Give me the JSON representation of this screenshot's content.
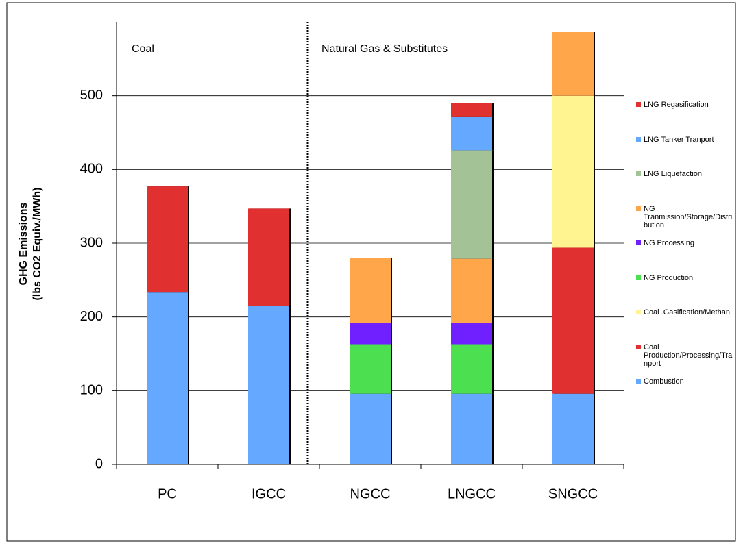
{
  "chart_data": {
    "type": "stacked_bar",
    "ylabel": [
      "GHG Emissions",
      "(lbs CO2 Equiv./MWh)"
    ],
    "annotations": [
      "Coal",
      "Natural Gas & Substitutes"
    ],
    "categories": [
      "PC",
      "IGCC",
      "NGCC",
      "LNGCC",
      "SNGCC"
    ],
    "series": [
      {
        "name": "Combustion",
        "color": "#64a8ff",
        "values": [
          233,
          215,
          96,
          96,
          96
        ]
      },
      {
        "name": "Coal Production/Processing/Tranport",
        "color": "#e03030",
        "values": [
          144,
          132,
          null,
          null,
          198
        ]
      },
      {
        "name": "Coal .Gasification/Methan",
        "color": "#fff490",
        "values": [
          null,
          null,
          null,
          null,
          206
        ]
      },
      {
        "name": "NG Production",
        "color": "#4ce050",
        "values": [
          null,
          null,
          67,
          67,
          null
        ]
      },
      {
        "name": "NG Processing",
        "color": "#7020ff",
        "values": [
          null,
          null,
          29,
          29,
          null
        ]
      },
      {
        "name": "NG Tranmission/Storage/Distribution",
        "color": "#ffa64a",
        "values": [
          null,
          null,
          88,
          87,
          87
        ]
      },
      {
        "name": "LNG Liquefaction",
        "color": "#a3c295",
        "values": [
          null,
          null,
          null,
          147,
          null
        ]
      },
      {
        "name": "LNG Tanker Tranport",
        "color": "#64a8ff",
        "values": [
          null,
          null,
          null,
          45,
          null
        ]
      },
      {
        "name": "LNG Regasification",
        "color": "#e03030",
        "values": [
          null,
          null,
          null,
          19,
          null
        ]
      }
    ],
    "ylim": [
      0,
      600
    ],
    "yticks": [
      0,
      100,
      200,
      300,
      400,
      500
    ],
    "grid": true,
    "legend": "right"
  }
}
